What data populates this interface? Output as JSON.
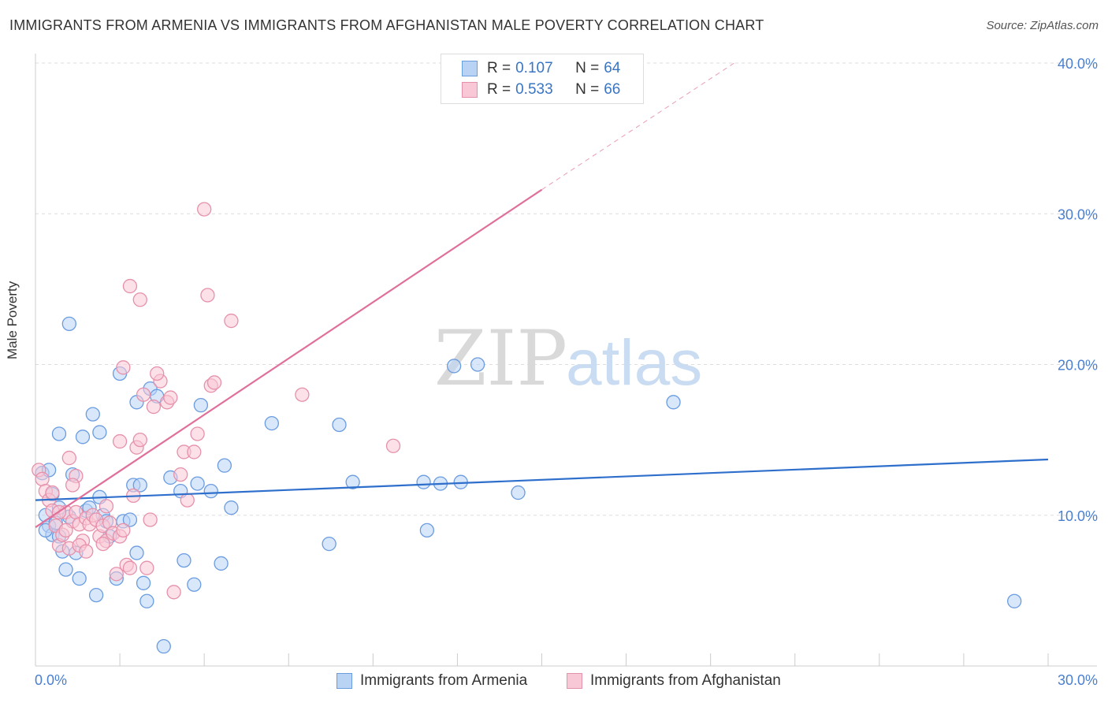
{
  "title": "IMMIGRANTS FROM ARMENIA VS IMMIGRANTS FROM AFGHANISTAN MALE POVERTY CORRELATION CHART",
  "source": "Source: ZipAtlas.com",
  "watermark": {
    "zip": "ZIP",
    "atlas": "atlas"
  },
  "legend": {
    "rows": [
      {
        "r_label": "R =",
        "r_value": "0.107",
        "n_label": "N =",
        "n_value": "64"
      },
      {
        "r_label": "R =",
        "r_value": "0.533",
        "n_label": "N =",
        "n_value": "66"
      }
    ]
  },
  "bottom_legend": {
    "armenia": "Immigrants from Armenia",
    "afghanistan": "Immigrants from Afghanistan"
  },
  "colors": {
    "armenia_fill": "#b9d3f5",
    "armenia_stroke": "#6a9ce0",
    "armenia_line": "#2f6fcc",
    "afghan_fill": "#f9c8d6",
    "afghan_stroke": "#e691ab",
    "afghan_line": "#e0709a",
    "tick_text": "#4a7fcf",
    "grid": "#dddddd"
  },
  "chart_data": {
    "type": "scatter",
    "title": "IMMIGRANTS FROM ARMENIA VS IMMIGRANTS FROM AFGHANISTAN MALE POVERTY CORRELATION CHART",
    "xlabel": "",
    "ylabel": "Male Poverty",
    "xlim": [
      0,
      30
    ],
    "ylim": [
      0,
      40
    ],
    "x_tick_labels": [
      "0.0%",
      "30.0%"
    ],
    "y_ticks": [
      10,
      20,
      30,
      40
    ],
    "y_tick_labels": [
      "10.0%",
      "20.0%",
      "30.0%",
      "40.0%"
    ],
    "legend_placement": "top-center",
    "series": [
      {
        "name": "Immigrants from Armenia",
        "r": 0.107,
        "n": 64,
        "trend": {
          "x0": 0,
          "y0": 11.0,
          "x1": 30,
          "y1": 13.7
        },
        "points": [
          [
            0.2,
            12.8
          ],
          [
            0.3,
            10.0
          ],
          [
            0.4,
            9.3
          ],
          [
            0.5,
            8.7
          ],
          [
            0.3,
            9.0
          ],
          [
            0.6,
            9.5
          ],
          [
            0.7,
            8.6
          ],
          [
            0.8,
            7.6
          ],
          [
            0.9,
            6.4
          ],
          [
            0.7,
            10.5
          ],
          [
            1.0,
            9.9
          ],
          [
            1.1,
            12.7
          ],
          [
            1.2,
            7.5
          ],
          [
            1.3,
            5.8
          ],
          [
            1.4,
            15.2
          ],
          [
            0.7,
            15.4
          ],
          [
            1.5,
            10.3
          ],
          [
            1.6,
            10.5
          ],
          [
            1.8,
            4.7
          ],
          [
            1.9,
            11.2
          ],
          [
            2.0,
            10.0
          ],
          [
            2.1,
            9.6
          ],
          [
            1.7,
            16.7
          ],
          [
            1.9,
            15.5
          ],
          [
            2.2,
            8.6
          ],
          [
            2.4,
            5.8
          ],
          [
            2.5,
            19.4
          ],
          [
            2.6,
            9.6
          ],
          [
            2.8,
            9.7
          ],
          [
            2.9,
            12.0
          ],
          [
            3.0,
            17.5
          ],
          [
            3.0,
            7.5
          ],
          [
            3.1,
            12.0
          ],
          [
            3.2,
            5.5
          ],
          [
            3.3,
            4.3
          ],
          [
            3.4,
            18.4
          ],
          [
            3.6,
            17.9
          ],
          [
            3.8,
            1.3
          ],
          [
            4.0,
            12.5
          ],
          [
            4.3,
            11.6
          ],
          [
            4.4,
            7.0
          ],
          [
            4.7,
            5.4
          ],
          [
            4.8,
            12.1
          ],
          [
            4.9,
            17.3
          ],
          [
            5.2,
            11.6
          ],
          [
            5.5,
            6.8
          ],
          [
            5.6,
            13.3
          ],
          [
            5.8,
            10.5
          ],
          [
            7.0,
            16.1
          ],
          [
            8.7,
            8.1
          ],
          [
            9.0,
            16.0
          ],
          [
            9.4,
            12.2
          ],
          [
            11.5,
            12.2
          ],
          [
            11.6,
            9.0
          ],
          [
            12.0,
            12.1
          ],
          [
            12.4,
            19.9
          ],
          [
            12.6,
            12.2
          ],
          [
            13.1,
            20.0
          ],
          [
            14.3,
            11.5
          ],
          [
            18.9,
            17.5
          ],
          [
            29.0,
            4.3
          ],
          [
            1.0,
            22.7
          ],
          [
            0.4,
            13.0
          ],
          [
            0.5,
            11.4
          ]
        ]
      },
      {
        "name": "Immigrants from Afghanistan",
        "r": 0.533,
        "n": 66,
        "trend": {
          "x0": 0,
          "y0": 9.2,
          "x1": 15,
          "y1": 31.6
        },
        "trend_dashed": {
          "x0": 15,
          "y0": 31.6,
          "x1": 20.7,
          "y1": 40.0
        },
        "points": [
          [
            0.1,
            13.0
          ],
          [
            0.2,
            12.4
          ],
          [
            0.3,
            11.6
          ],
          [
            0.4,
            11.0
          ],
          [
            0.5,
            10.3
          ],
          [
            0.6,
            9.3
          ],
          [
            0.7,
            8.0
          ],
          [
            0.8,
            8.7
          ],
          [
            0.9,
            10.2
          ],
          [
            1.0,
            7.8
          ],
          [
            1.1,
            9.6
          ],
          [
            1.2,
            10.2
          ],
          [
            1.3,
            9.4
          ],
          [
            1.4,
            8.3
          ],
          [
            1.5,
            9.8
          ],
          [
            1.6,
            9.4
          ],
          [
            1.0,
            13.8
          ],
          [
            1.2,
            12.6
          ],
          [
            1.7,
            10.0
          ],
          [
            1.8,
            9.7
          ],
          [
            1.9,
            8.6
          ],
          [
            2.0,
            9.3
          ],
          [
            2.1,
            8.3
          ],
          [
            2.2,
            9.5
          ],
          [
            2.3,
            8.8
          ],
          [
            2.1,
            10.6
          ],
          [
            2.4,
            6.1
          ],
          [
            2.5,
            8.6
          ],
          [
            2.6,
            9.0
          ],
          [
            2.7,
            6.7
          ],
          [
            2.8,
            6.5
          ],
          [
            2.9,
            11.3
          ],
          [
            2.5,
            14.9
          ],
          [
            2.8,
            25.2
          ],
          [
            3.0,
            14.5
          ],
          [
            3.1,
            15.0
          ],
          [
            3.2,
            18.0
          ],
          [
            3.3,
            6.5
          ],
          [
            3.4,
            9.7
          ],
          [
            3.5,
            17.2
          ],
          [
            3.7,
            18.9
          ],
          [
            3.9,
            17.5
          ],
          [
            4.0,
            17.8
          ],
          [
            4.1,
            4.9
          ],
          [
            4.3,
            12.7
          ],
          [
            4.4,
            14.2
          ],
          [
            4.5,
            11.0
          ],
          [
            4.7,
            14.2
          ],
          [
            4.8,
            15.4
          ],
          [
            5.0,
            30.3
          ],
          [
            5.1,
            24.6
          ],
          [
            5.2,
            18.6
          ],
          [
            5.3,
            18.8
          ],
          [
            5.8,
            22.9
          ],
          [
            7.9,
            18.0
          ],
          [
            10.6,
            14.6
          ],
          [
            3.1,
            24.3
          ],
          [
            3.6,
            19.4
          ],
          [
            2.6,
            19.8
          ],
          [
            0.5,
            11.5
          ],
          [
            0.7,
            10.2
          ],
          [
            1.1,
            12.0
          ],
          [
            1.3,
            8.0
          ],
          [
            2.0,
            8.1
          ],
          [
            1.5,
            7.6
          ],
          [
            0.9,
            9.0
          ]
        ]
      }
    ]
  }
}
